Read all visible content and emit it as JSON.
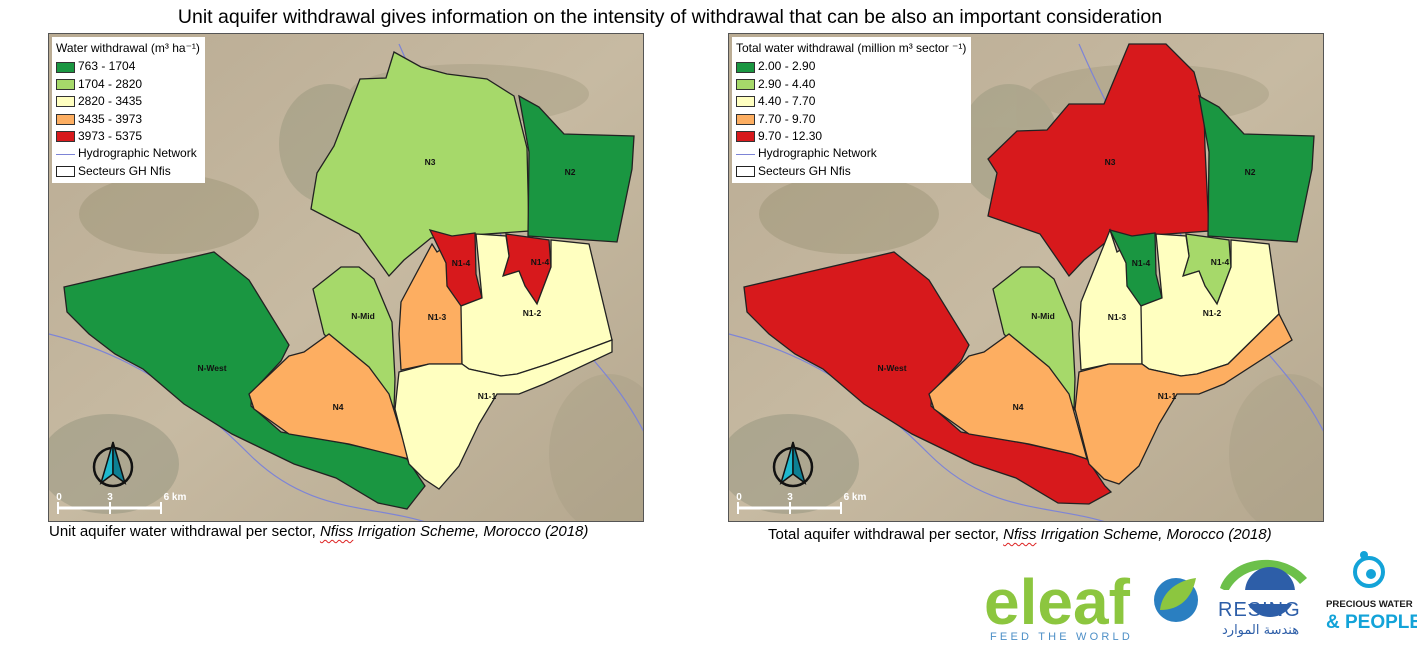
{
  "title": "Unit aquifer withdrawal gives information on the intensity of withdrawal that can be also an important consideration",
  "maps": [
    {
      "id": "unit",
      "legend_title": "Water withdrawal (m³ ha⁻¹)",
      "classes": [
        {
          "label": "763 - 1704",
          "color": "#1a9641"
        },
        {
          "label": "1704 - 2820",
          "color": "#a6d96a"
        },
        {
          "label": "2820 - 3435",
          "color": "#ffffc0"
        },
        {
          "label": "3435 - 3973",
          "color": "#fdae61"
        },
        {
          "label": "3973 - 5375",
          "color": "#d7191c"
        }
      ],
      "network_label": "Hydrographic Network",
      "sectors_label": "Secteurs GH Nfis",
      "sectors": {
        "N3": 1,
        "N2": 0,
        "N-West": 0,
        "N-Mid": 1,
        "N4": 3,
        "N1-3": 3,
        "N1-4a": 4,
        "N1-4b": 4,
        "N1-2": 2,
        "N1-1": 2
      },
      "sector_labels": {
        "N3": "N3",
        "N2": "N2",
        "N-West": "N-West",
        "N-Mid": "N-Mid",
        "N4": "N4",
        "N1-3": "N1-3",
        "N1-4a": "N1-4",
        "N1-4b": "N1-4",
        "N1-2": "N1-2",
        "N1-1": "N1-1"
      },
      "scale": {
        "t0": "0",
        "t1": "3",
        "t2": "6 km"
      },
      "caption_prefix": "Unit aquifer water withdrawal per sector, ",
      "caption_italic": "Nfiss Irrigation Scheme, Morocco (2018)",
      "caption_italic_first": "Nfiss",
      "caption_italic_rest": " Irrigation Scheme, Morocco (2018)"
    },
    {
      "id": "total",
      "legend_title": "Total water withdrawal (million m³ sector ⁻¹)",
      "classes": [
        {
          "label": "2.00 - 2.90",
          "color": "#1a9641"
        },
        {
          "label": "2.90 - 4.40",
          "color": "#a6d96a"
        },
        {
          "label": "4.40 - 7.70",
          "color": "#ffffc0"
        },
        {
          "label": "7.70 - 9.70",
          "color": "#fdae61"
        },
        {
          "label": "9.70 - 12.30",
          "color": "#d7191c"
        }
      ],
      "network_label": "Hydrographic Network",
      "sectors_label": "Secteurs GH Nfis",
      "sectors": {
        "N3": 4,
        "N2": 0,
        "N-West": 4,
        "N-Mid": 1,
        "N4": 3,
        "N1-3": 2,
        "N1-4a": 0,
        "N1-4b": 1,
        "N1-2": 2,
        "N1-1": 3
      },
      "sector_labels": {
        "N3": "N3",
        "N2": "N2",
        "N-West": "N-West",
        "N-Mid": "N-Mid",
        "N4": "N4",
        "N1-3": "N1-3",
        "N1-4a": "N1-4",
        "N1-4b": "N1-4",
        "N1-2": "N1-2",
        "N1-1": "N1-1"
      },
      "scale": {
        "t0": "0",
        "t1": "3",
        "t2": "6 km"
      },
      "caption_prefix": "Total aquifer withdrawal per sector, ",
      "caption_italic_first": "Nfiss",
      "caption_italic_rest": " Irrigation Scheme, Morocco (2018)"
    }
  ],
  "logos": {
    "eleaf_word": "eleaf",
    "eleaf_tagline": "FEED THE WORLD",
    "resing_word": "RESING",
    "resing_arabic": "هندسة الموارد",
    "pwp_line1": "PRECIOUS WATER",
    "pwp_line2": "& PEOPLE",
    "colors": {
      "eleaf_green": "#8cc63f",
      "eleaf_blue": "#2a7fc1",
      "resing_blue": "#2d5ea8",
      "pwp_cyan": "#13a3d8",
      "pwp_black": "#1a1a1a"
    }
  }
}
